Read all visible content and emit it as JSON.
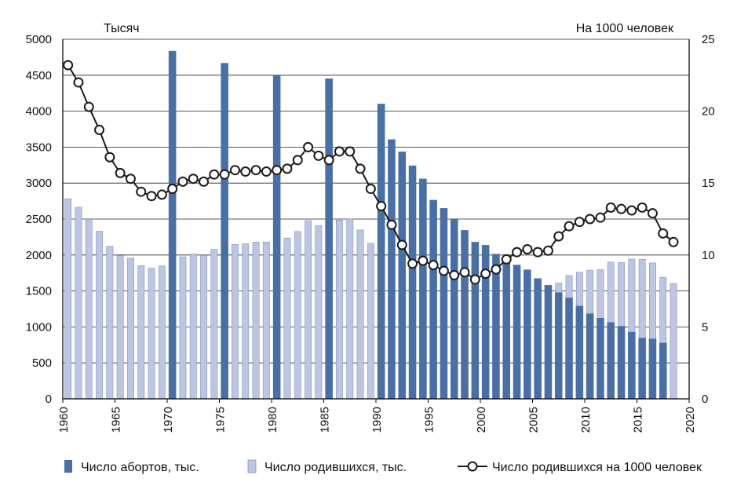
{
  "chart_data": {
    "type": "bar+line",
    "left_axis_label": "Тысяч",
    "right_axis_label": "На 1000 человек",
    "left_ylim": [
      0,
      5000
    ],
    "left_ticks": [
      0,
      500,
      1000,
      1500,
      2000,
      2500,
      3000,
      3500,
      4000,
      4500,
      5000
    ],
    "right_ylim": [
      0,
      25
    ],
    "right_ticks": [
      0,
      5,
      10,
      15,
      20,
      25
    ],
    "xlim": [
      1960,
      2020
    ],
    "x_ticks": [
      1960,
      1965,
      1970,
      1975,
      1980,
      1985,
      1990,
      1995,
      2000,
      2005,
      2010,
      2015,
      2020
    ],
    "grid": "horizontal",
    "legend_position": "bottom",
    "colors": {
      "abortions": "#4a6fa5",
      "births": "#bcc6e2",
      "births_outline": "#8494c4",
      "rate_line": "#1a1a1a",
      "rate_marker_fill": "#ffffff"
    },
    "series": [
      {
        "name": "Число абортов, тыс.",
        "kind": "bar",
        "axis": "left",
        "points": [
          [
            1970,
            4838
          ],
          [
            1975,
            4670
          ],
          [
            1980,
            4506
          ],
          [
            1985,
            4454
          ],
          [
            1990,
            4103
          ],
          [
            1991,
            3608
          ],
          [
            1992,
            3437
          ],
          [
            1993,
            3244
          ],
          [
            1994,
            3061
          ],
          [
            1995,
            2766
          ],
          [
            1996,
            2652
          ],
          [
            1997,
            2499
          ],
          [
            1998,
            2346
          ],
          [
            1999,
            2182
          ],
          [
            2000,
            2139
          ],
          [
            2001,
            2015
          ],
          [
            2002,
            1944
          ],
          [
            2003,
            1864
          ],
          [
            2004,
            1797
          ],
          [
            2005,
            1676
          ],
          [
            2006,
            1582
          ],
          [
            2007,
            1480
          ],
          [
            2008,
            1406
          ],
          [
            2009,
            1292
          ],
          [
            2010,
            1186
          ],
          [
            2011,
            1124
          ],
          [
            2012,
            1064
          ],
          [
            2013,
            1012
          ],
          [
            2014,
            930
          ],
          [
            2015,
            848
          ],
          [
            2016,
            836
          ],
          [
            2017,
            779
          ]
        ]
      },
      {
        "name": "Число родившихся, тыс.",
        "kind": "bar",
        "axis": "left",
        "points": [
          [
            1960,
            2782
          ],
          [
            1961,
            2662
          ],
          [
            1962,
            2482
          ],
          [
            1963,
            2331
          ],
          [
            1964,
            2121
          ],
          [
            1965,
            1991
          ],
          [
            1966,
            1957
          ],
          [
            1967,
            1852
          ],
          [
            1968,
            1817
          ],
          [
            1969,
            1847
          ],
          [
            1970,
            1904
          ],
          [
            1971,
            1975
          ],
          [
            1972,
            2015
          ],
          [
            1973,
            1995
          ],
          [
            1974,
            2079
          ],
          [
            1975,
            2106
          ],
          [
            1976,
            2147
          ],
          [
            1977,
            2157
          ],
          [
            1978,
            2180
          ],
          [
            1979,
            2179
          ],
          [
            1980,
            2203
          ],
          [
            1981,
            2236
          ],
          [
            1982,
            2328
          ],
          [
            1983,
            2478
          ],
          [
            1984,
            2409
          ],
          [
            1985,
            2375
          ],
          [
            1986,
            2486
          ],
          [
            1987,
            2500
          ],
          [
            1988,
            2348
          ],
          [
            1989,
            2161
          ],
          [
            1990,
            1989
          ],
          [
            1991,
            1795
          ],
          [
            1992,
            1588
          ],
          [
            1993,
            1379
          ],
          [
            1994,
            1408
          ],
          [
            1995,
            1364
          ],
          [
            1996,
            1305
          ],
          [
            1997,
            1260
          ],
          [
            1998,
            1283
          ],
          [
            1999,
            1215
          ],
          [
            2000,
            1267
          ],
          [
            2001,
            1312
          ],
          [
            2002,
            1397
          ],
          [
            2003,
            1477
          ],
          [
            2004,
            1502
          ],
          [
            2005,
            1457
          ],
          [
            2006,
            1480
          ],
          [
            2007,
            1610
          ],
          [
            2008,
            1714
          ],
          [
            2009,
            1762
          ],
          [
            2010,
            1789
          ],
          [
            2011,
            1797
          ],
          [
            2012,
            1902
          ],
          [
            2013,
            1896
          ],
          [
            2014,
            1943
          ],
          [
            2015,
            1940
          ],
          [
            2016,
            1889
          ],
          [
            2017,
            1690
          ],
          [
            2018,
            1604
          ]
        ]
      },
      {
        "name": "Число родившихся на 1000 человек",
        "kind": "line",
        "axis": "right",
        "points": [
          [
            1960,
            23.2
          ],
          [
            1961,
            22.0
          ],
          [
            1962,
            20.3
          ],
          [
            1963,
            18.7
          ],
          [
            1964,
            16.8
          ],
          [
            1965,
            15.7
          ],
          [
            1966,
            15.3
          ],
          [
            1967,
            14.4
          ],
          [
            1968,
            14.1
          ],
          [
            1969,
            14.2
          ],
          [
            1970,
            14.6
          ],
          [
            1971,
            15.1
          ],
          [
            1972,
            15.3
          ],
          [
            1973,
            15.1
          ],
          [
            1974,
            15.6
          ],
          [
            1975,
            15.6
          ],
          [
            1976,
            15.9
          ],
          [
            1977,
            15.8
          ],
          [
            1978,
            15.9
          ],
          [
            1979,
            15.8
          ],
          [
            1980,
            15.9
          ],
          [
            1981,
            16.0
          ],
          [
            1982,
            16.6
          ],
          [
            1983,
            17.5
          ],
          [
            1984,
            16.9
          ],
          [
            1985,
            16.6
          ],
          [
            1986,
            17.2
          ],
          [
            1987,
            17.2
          ],
          [
            1988,
            16.0
          ],
          [
            1989,
            14.6
          ],
          [
            1990,
            13.4
          ],
          [
            1991,
            12.1
          ],
          [
            1992,
            10.7
          ],
          [
            1993,
            9.4
          ],
          [
            1994,
            9.6
          ],
          [
            1995,
            9.3
          ],
          [
            1996,
            8.9
          ],
          [
            1997,
            8.6
          ],
          [
            1998,
            8.8
          ],
          [
            1999,
            8.3
          ],
          [
            2000,
            8.7
          ],
          [
            2001,
            9.0
          ],
          [
            2002,
            9.7
          ],
          [
            2003,
            10.2
          ],
          [
            2004,
            10.4
          ],
          [
            2005,
            10.2
          ],
          [
            2006,
            10.3
          ],
          [
            2007,
            11.3
          ],
          [
            2008,
            12.0
          ],
          [
            2009,
            12.3
          ],
          [
            2010,
            12.5
          ],
          [
            2011,
            12.6
          ],
          [
            2012,
            13.3
          ],
          [
            2013,
            13.2
          ],
          [
            2014,
            13.1
          ],
          [
            2015,
            13.3
          ],
          [
            2016,
            12.9
          ],
          [
            2017,
            11.5
          ],
          [
            2018,
            10.9
          ]
        ]
      }
    ]
  }
}
